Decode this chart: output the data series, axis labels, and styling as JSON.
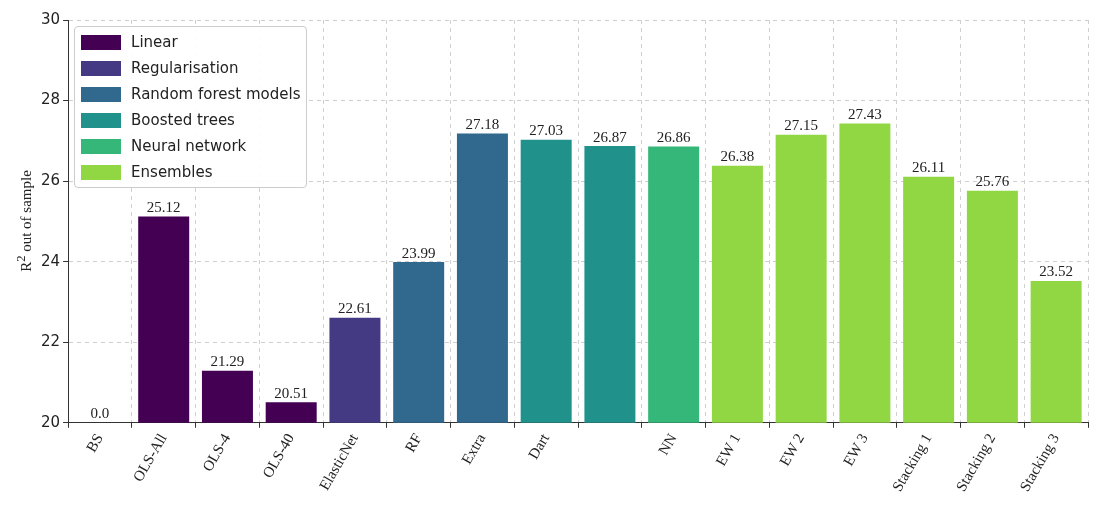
{
  "chart_data": {
    "type": "bar",
    "ylabel": "R$^{2}$ out of sample",
    "categories": [
      "BS",
      "OLS-All",
      "OLS-4",
      "OLS-40",
      "ElasticNet",
      "RF",
      "Extra",
      "Dart",
      null,
      "NN",
      "EW 1",
      "EW 2",
      "EW 3",
      "Stacking 1",
      "Stacking 2",
      "Stacking 3"
    ],
    "series": [
      {
        "name": "Linear",
        "color": "#440154",
        "values": [
          null,
          25.12,
          21.29,
          20.51,
          null,
          null,
          null,
          null,
          null,
          null,
          null,
          null,
          null,
          null,
          null,
          null
        ],
        "value_labels": [
          "0.0",
          "25.12",
          "21.29",
          "20.51",
          null,
          null,
          null,
          null,
          null,
          null,
          null,
          null,
          null,
          null,
          null,
          null
        ]
      },
      {
        "name": "Regularisation",
        "color": "#443983",
        "values": [
          null,
          null,
          null,
          null,
          22.61,
          null,
          null,
          null,
          null,
          null,
          null,
          null,
          null,
          null,
          null,
          null
        ],
        "value_labels": [
          null,
          null,
          null,
          null,
          "22.61",
          null,
          null,
          null,
          null,
          null,
          null,
          null,
          null,
          null,
          null,
          null
        ]
      },
      {
        "name": "Random forest models",
        "color": "#31688e",
        "values": [
          null,
          null,
          null,
          null,
          null,
          23.99,
          27.18,
          null,
          null,
          null,
          null,
          null,
          null,
          null,
          null,
          null
        ],
        "value_labels": [
          null,
          null,
          null,
          null,
          null,
          "23.99",
          "27.18",
          null,
          null,
          null,
          null,
          null,
          null,
          null,
          null,
          null
        ]
      },
      {
        "name": "Boosted trees",
        "color": "#21918c",
        "values": [
          null,
          null,
          null,
          null,
          null,
          null,
          null,
          27.03,
          26.87,
          null,
          null,
          null,
          null,
          null,
          null,
          null
        ],
        "value_labels": [
          null,
          null,
          null,
          null,
          null,
          null,
          null,
          "27.03",
          "26.87",
          null,
          null,
          null,
          null,
          null,
          null,
          null
        ]
      },
      {
        "name": "Neural network",
        "color": "#35b779",
        "values": [
          null,
          null,
          null,
          null,
          null,
          null,
          null,
          null,
          null,
          26.86,
          null,
          null,
          null,
          null,
          null,
          null
        ],
        "value_labels": [
          null,
          null,
          null,
          null,
          null,
          null,
          null,
          null,
          null,
          "26.86",
          null,
          null,
          null,
          null,
          null,
          null
        ]
      },
      {
        "name": "Ensembles",
        "color": "#90d743",
        "values": [
          null,
          null,
          null,
          null,
          null,
          null,
          null,
          null,
          null,
          null,
          26.38,
          27.15,
          27.43,
          26.11,
          25.76,
          23.52
        ],
        "value_labels": [
          null,
          null,
          null,
          null,
          null,
          null,
          null,
          null,
          null,
          null,
          "26.38",
          "27.15",
          "27.43",
          "26.11",
          "25.76",
          "23.52"
        ]
      }
    ],
    "ylim": [
      20,
      30
    ],
    "yticks": [
      20,
      22,
      24,
      26,
      28,
      30
    ],
    "grid": true,
    "legend": "top left"
  }
}
